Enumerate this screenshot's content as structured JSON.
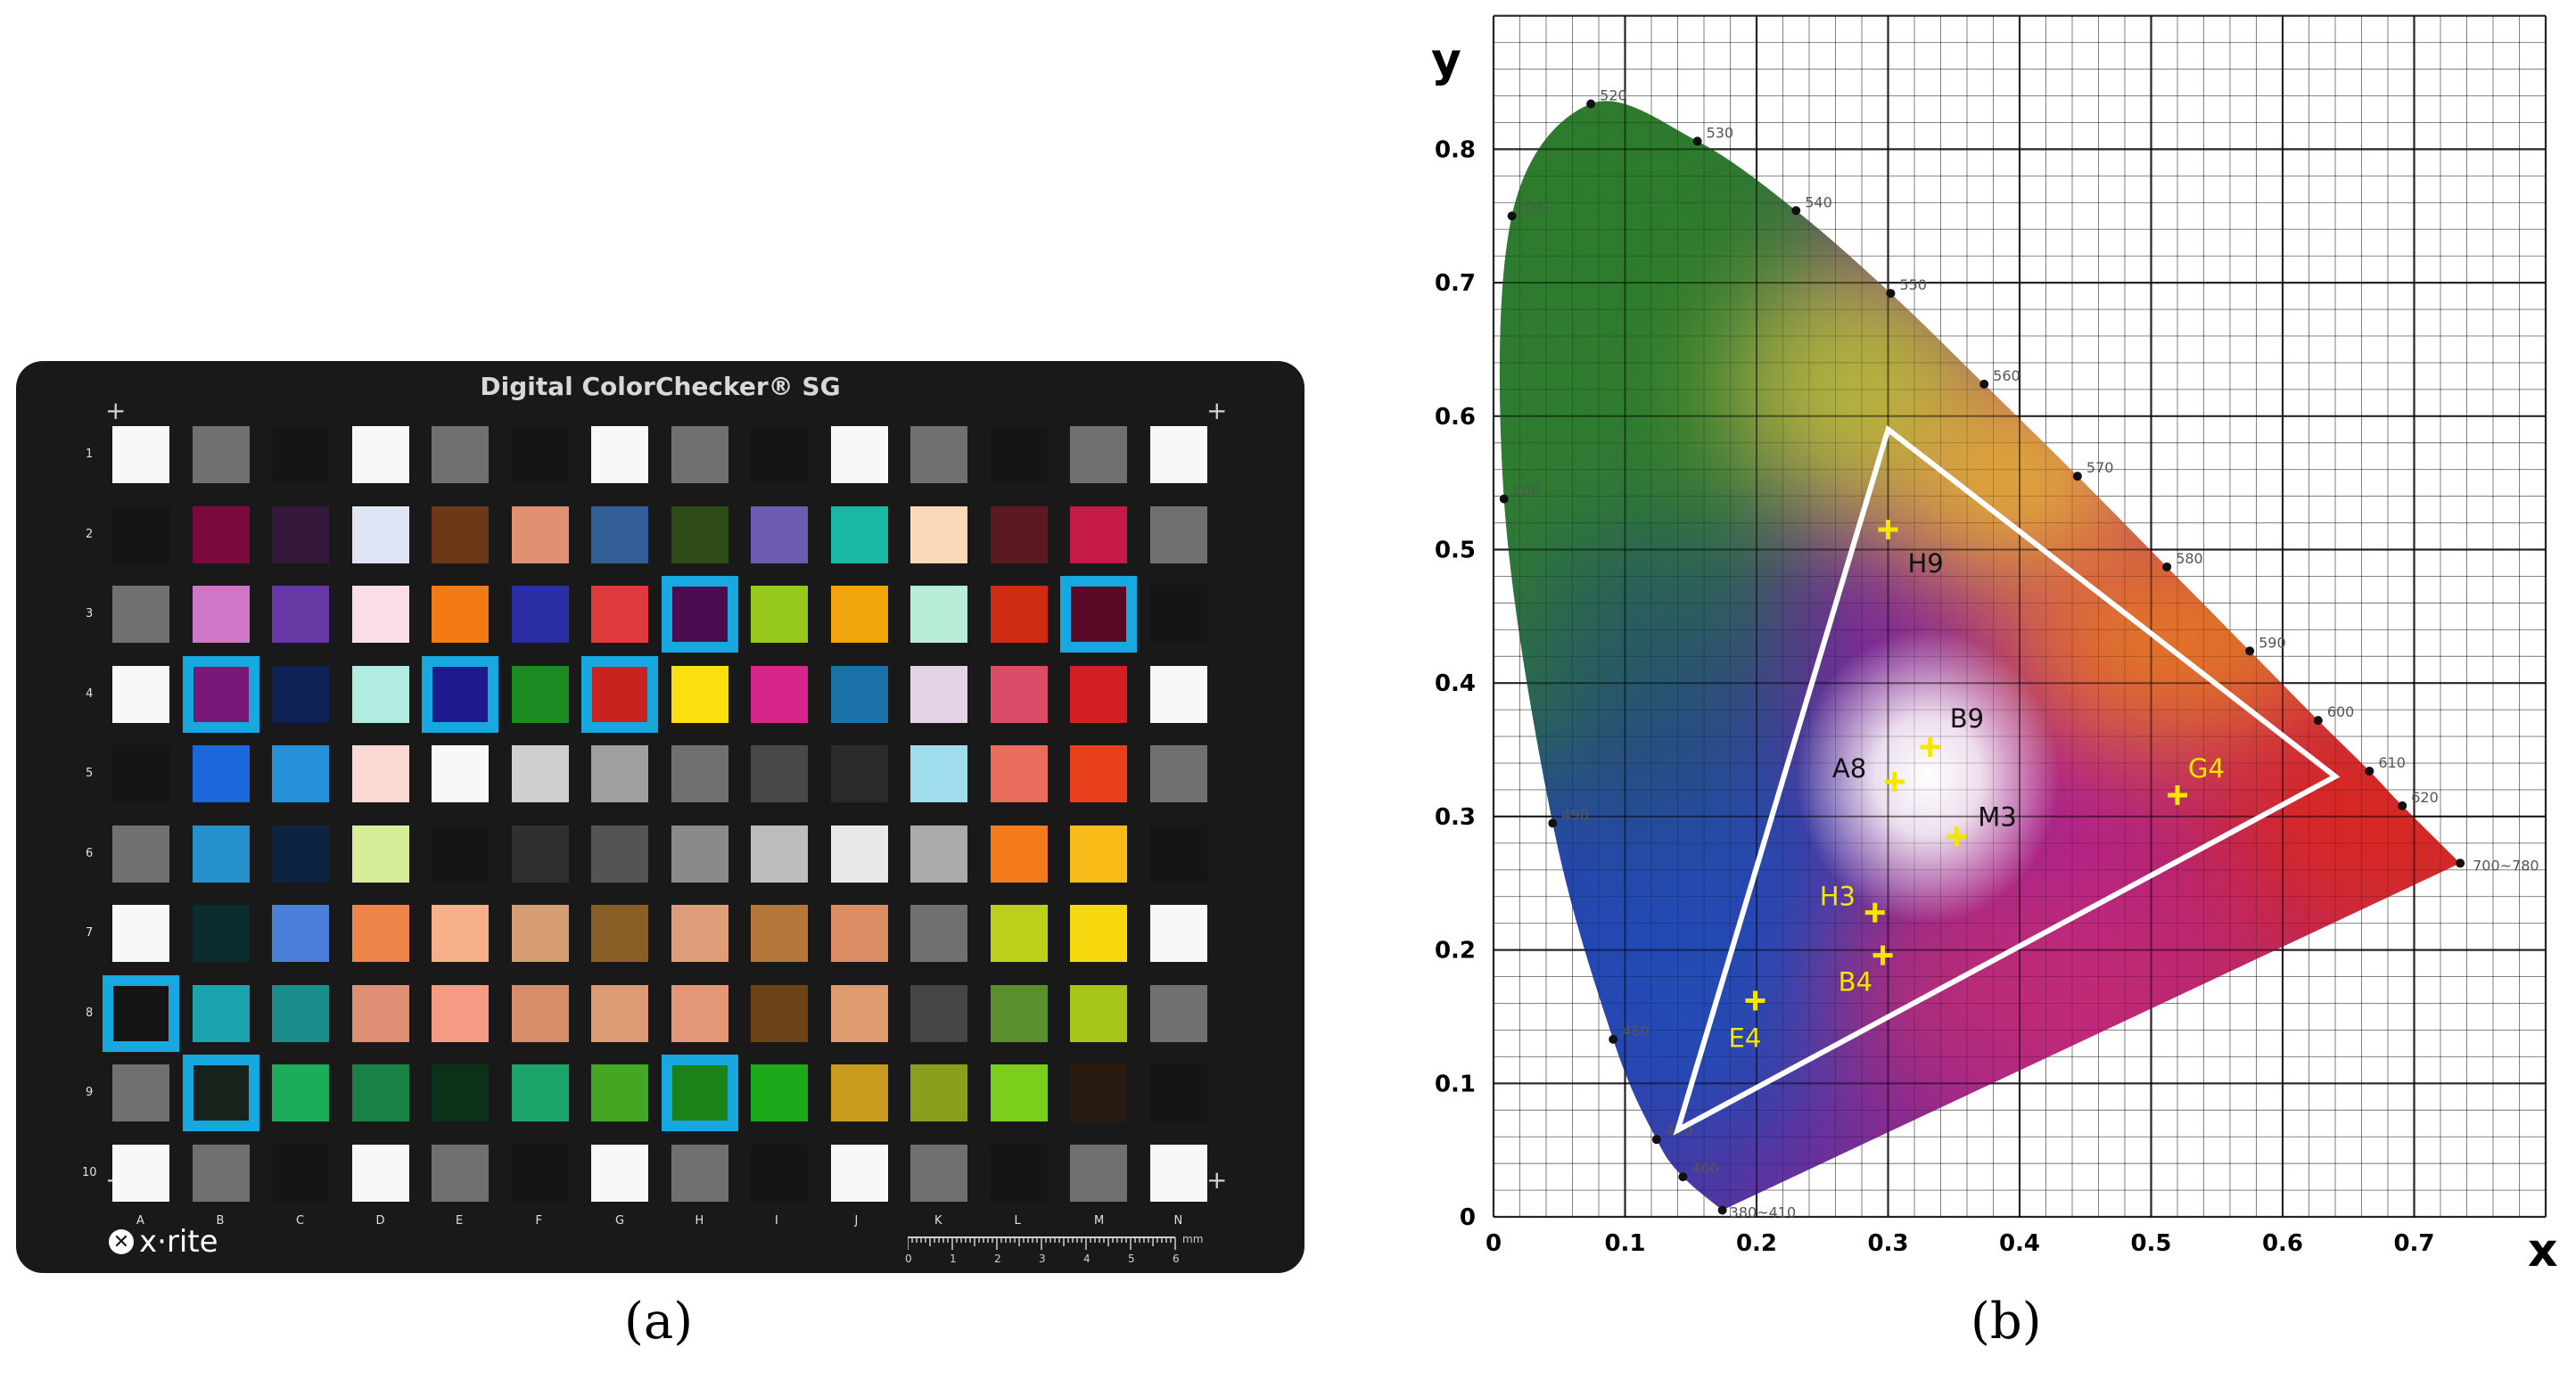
{
  "panel_a": {
    "label": "(a)",
    "title": "Digital ColorChecker® SG",
    "brand": "x·rite",
    "rows": [
      "1",
      "2",
      "3",
      "4",
      "5",
      "6",
      "7",
      "8",
      "9",
      "10"
    ],
    "columns": [
      "A",
      "B",
      "C",
      "D",
      "E",
      "F",
      "G",
      "H",
      "I",
      "J",
      "K",
      "L",
      "M",
      "N"
    ],
    "ruler_ticks": [
      "0",
      "1",
      "2",
      "3",
      "4",
      "5",
      "6"
    ],
    "ruler_unit": "mm",
    "grid_colors": [
      [
        "#f8f8f8",
        "#707070",
        "#151515",
        "#f8f8f8",
        "#707070",
        "#151515",
        "#f8f8f8",
        "#707070",
        "#151515",
        "#f8f8f8",
        "#707070",
        "#151515",
        "#707070",
        "#f8f8f8"
      ],
      [
        "#151515",
        "#7a0a3e",
        "#34193a",
        "#dfe5f4",
        "#6d3818",
        "#e19072",
        "#315e96",
        "#2e4a17",
        "#6c5bb0",
        "#19b8a4",
        "#fbd9b8",
        "#5a1a1f",
        "#c41a45",
        "#707070"
      ],
      [
        "#707070",
        "#cf76c6",
        "#6738a4",
        "#fbdde6",
        "#f27a14",
        "#2c2fa4",
        "#df3b3c",
        "#4c0c50",
        "#97c91c",
        "#f1a50d",
        "#b7ecd6",
        "#cf2c11",
        "#5a0a26",
        "#151515"
      ],
      [
        "#f8f8f8",
        "#7a187a",
        "#0e2154",
        "#b0ecdf",
        "#1c1a8d",
        "#1b8b22",
        "#c8231e",
        "#fbdf0e",
        "#d6258d",
        "#1b72a8",
        "#e6d2e6",
        "#d94d68",
        "#d42025",
        "#f8f8f8"
      ],
      [
        "#151515",
        "#1b67dd",
        "#2591d9",
        "#fbd9d3",
        "#f8f8f8",
        "#cfcfcf",
        "#9f9f9f",
        "#707070",
        "#484848",
        "#2a2a2a",
        "#9fdcec",
        "#e96c5c",
        "#e9401c",
        "#707070"
      ],
      [
        "#707070",
        "#2490cc",
        "#0c2440",
        "#d7ed98",
        "#151515",
        "#303030",
        "#545454",
        "#8a8a8a",
        "#bdbdbd",
        "#e8e8e8",
        "#aaaaaa",
        "#f37b1b",
        "#f9bb17",
        "#151515"
      ],
      [
        "#f8f8f8",
        "#0a2c2f",
        "#4b7fd9",
        "#ee8549",
        "#f6b08a",
        "#d69d72",
        "#8a5e27",
        "#df9e7a",
        "#b6773b",
        "#dd8d64",
        "#707070",
        "#bccf1a",
        "#f7d80e",
        "#f8f8f8"
      ],
      [
        "#151515",
        "#1ba3af",
        "#1a8d8a",
        "#df8f73",
        "#f59b84",
        "#d88e6a",
        "#dc9b74",
        "#e49776",
        "#6c4317",
        "#df9c6e",
        "#454545",
        "#5b8f2b",
        "#a5c51b",
        "#707070"
      ],
      [
        "#707070",
        "#1a231b",
        "#1cad5a",
        "#198247",
        "#0c3118",
        "#1ca46a",
        "#43a722",
        "#1a8218",
        "#1caa1a",
        "#c99b1e",
        "#8a9f1c",
        "#79cf1c",
        "#2a1b10",
        "#151515"
      ],
      [
        "#f8f8f8",
        "#707070",
        "#151515",
        "#f8f8f8",
        "#707070",
        "#151515",
        "#f8f8f8",
        "#707070",
        "#151515",
        "#f8f8f8",
        "#707070",
        "#151515",
        "#707070",
        "#f8f8f8"
      ]
    ],
    "highlight_color": "#17a8e0",
    "highlighted_patches": [
      "H3",
      "M3",
      "B4",
      "E4",
      "G4",
      "A8",
      "B9",
      "H9"
    ]
  },
  "panel_b": {
    "label": "(b)",
    "xlabel": "x",
    "ylabel": "y",
    "x_ticks": [
      "0",
      "0.1",
      "0.2",
      "0.3",
      "0.4",
      "0.5",
      "0.6",
      "0.7"
    ],
    "y_ticks": [
      "0",
      "0.1",
      "0.2",
      "0.3",
      "0.4",
      "0.5",
      "0.6",
      "0.7",
      "0.8"
    ],
    "wavelength_labels": [
      "520",
      "530",
      "540",
      "550",
      "560",
      "570",
      "580",
      "590",
      "600",
      "610",
      "620",
      "510",
      "500",
      "490",
      "480",
      "470",
      "460",
      "380~410",
      "700~780"
    ],
    "triangle_color": "#ffffff",
    "marker_color": "#f5e600"
  },
  "chart_data": {
    "type": "scatter",
    "title": "",
    "xlabel": "x",
    "ylabel": "y",
    "xlim": [
      0,
      0.8
    ],
    "ylim": [
      0,
      0.9
    ],
    "gamut_triangle": [
      [
        0.3,
        0.59
      ],
      [
        0.64,
        0.33
      ],
      [
        0.14,
        0.065
      ]
    ],
    "points": [
      {
        "label": "H9",
        "x": 0.3,
        "y": 0.515,
        "label_color": "#111111"
      },
      {
        "label": "B9",
        "x": 0.332,
        "y": 0.352,
        "label_color": "#111111"
      },
      {
        "label": "A8",
        "x": 0.305,
        "y": 0.326,
        "label_color": "#111111"
      },
      {
        "label": "M3",
        "x": 0.352,
        "y": 0.285,
        "label_color": "#111111"
      },
      {
        "label": "G4",
        "x": 0.52,
        "y": 0.316,
        "label_color": "#f5e600"
      },
      {
        "label": "H3",
        "x": 0.29,
        "y": 0.228,
        "label_color": "#f5e600"
      },
      {
        "label": "B4",
        "x": 0.296,
        "y": 0.196,
        "label_color": "#f5e600"
      },
      {
        "label": "E4",
        "x": 0.199,
        "y": 0.162,
        "label_color": "#f5e600"
      }
    ],
    "spectral_locus": [
      {
        "nm": "380~410",
        "x": 0.174,
        "y": 0.005
      },
      {
        "nm": "460",
        "x": 0.144,
        "y": 0.03
      },
      {
        "nm": "470",
        "x": 0.124,
        "y": 0.058
      },
      {
        "nm": "480",
        "x": 0.091,
        "y": 0.133
      },
      {
        "nm": "490",
        "x": 0.045,
        "y": 0.295
      },
      {
        "nm": "500",
        "x": 0.008,
        "y": 0.538
      },
      {
        "nm": "510",
        "x": 0.014,
        "y": 0.75
      },
      {
        "nm": "520",
        "x": 0.074,
        "y": 0.834
      },
      {
        "nm": "530",
        "x": 0.155,
        "y": 0.806
      },
      {
        "nm": "540",
        "x": 0.23,
        "y": 0.754
      },
      {
        "nm": "550",
        "x": 0.302,
        "y": 0.692
      },
      {
        "nm": "560",
        "x": 0.373,
        "y": 0.624
      },
      {
        "nm": "570",
        "x": 0.444,
        "y": 0.555
      },
      {
        "nm": "580",
        "x": 0.512,
        "y": 0.487
      },
      {
        "nm": "590",
        "x": 0.575,
        "y": 0.424
      },
      {
        "nm": "600",
        "x": 0.627,
        "y": 0.372
      },
      {
        "nm": "610",
        "x": 0.666,
        "y": 0.334
      },
      {
        "nm": "620",
        "x": 0.691,
        "y": 0.308
      },
      {
        "nm": "700~780",
        "x": 0.735,
        "y": 0.265
      }
    ]
  }
}
